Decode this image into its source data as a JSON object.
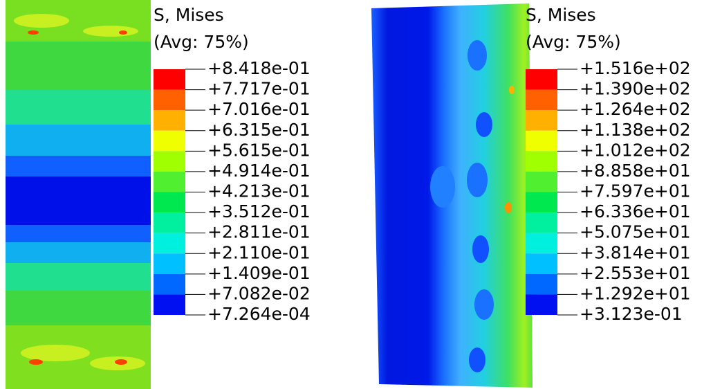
{
  "panels": [
    {
      "legend": {
        "title": "S, Mises",
        "subtitle": "(Avg: 75%)",
        "labels": [
          "+8.418e-01",
          "+7.717e-01",
          "+7.016e-01",
          "+6.315e-01",
          "+5.615e-01",
          "+4.914e-01",
          "+4.213e-01",
          "+3.512e-01",
          "+2.811e-01",
          "+2.110e-01",
          "+1.409e-01",
          "+7.082e-02",
          "+7.264e-04"
        ]
      }
    },
    {
      "legend": {
        "title": "S, Mises",
        "subtitle": "(Avg: 75%)",
        "labels": [
          "+1.516e+02",
          "+1.390e+02",
          "+1.264e+02",
          "+1.138e+02",
          "+1.012e+02",
          "+8.858e+01",
          "+7.597e+01",
          "+6.336e+01",
          "+5.075e+01",
          "+3.814e+01",
          "+2.553e+01",
          "+1.292e+01",
          "+3.123e-01"
        ]
      }
    }
  ]
}
